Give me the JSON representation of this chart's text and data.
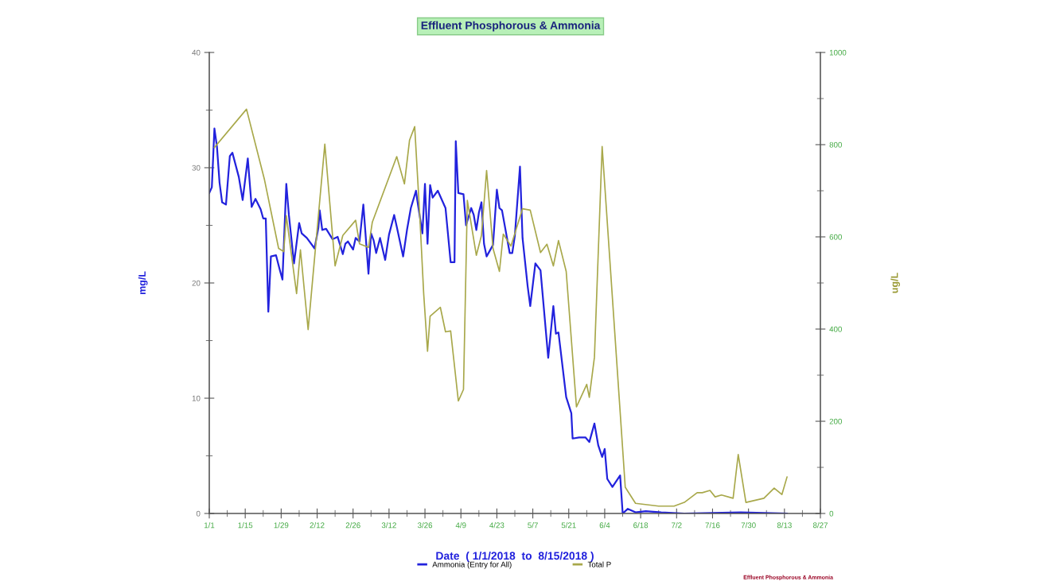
{
  "chart_data": {
    "type": "line",
    "title": "Effluent Phosphorous & Ammonia",
    "xlabel": "Date  ( 1/1/2018  to  8/15/2018 )",
    "ylabel": "mg/L",
    "y2label": "ug/L",
    "xlim": [
      "2018-01-01",
      "2018-08-27"
    ],
    "xticks": [
      {
        "value": "2018-01-01",
        "label": "1/1"
      },
      {
        "value": "2018-01-08",
        "label": null
      },
      {
        "value": "2018-01-15",
        "label": "1/15"
      },
      {
        "value": "2018-01-22",
        "label": null
      },
      {
        "value": "2018-01-29",
        "label": "1/29"
      },
      {
        "value": "2018-02-05",
        "label": null
      },
      {
        "value": "2018-02-12",
        "label": "2/12"
      },
      {
        "value": "2018-02-19",
        "label": null
      },
      {
        "value": "2018-02-26",
        "label": "2/26"
      },
      {
        "value": "2018-03-05",
        "label": null
      },
      {
        "value": "2018-03-12",
        "label": "3/12"
      },
      {
        "value": "2018-03-19",
        "label": null
      },
      {
        "value": "2018-03-26",
        "label": "3/26"
      },
      {
        "value": "2018-04-02",
        "label": null
      },
      {
        "value": "2018-04-09",
        "label": "4/9"
      },
      {
        "value": "2018-04-16",
        "label": null
      },
      {
        "value": "2018-04-23",
        "label": "4/23"
      },
      {
        "value": "2018-04-30",
        "label": null
      },
      {
        "value": "2018-05-07",
        "label": "5/7"
      },
      {
        "value": "2018-05-14",
        "label": null
      },
      {
        "value": "2018-05-21",
        "label": "5/21"
      },
      {
        "value": "2018-05-28",
        "label": null
      },
      {
        "value": "2018-06-04",
        "label": "6/4"
      },
      {
        "value": "2018-06-11",
        "label": null
      },
      {
        "value": "2018-06-18",
        "label": "6/18"
      },
      {
        "value": "2018-06-25",
        "label": null
      },
      {
        "value": "2018-07-02",
        "label": "7/2"
      },
      {
        "value": "2018-07-09",
        "label": null
      },
      {
        "value": "2018-07-16",
        "label": "7/16"
      },
      {
        "value": "2018-07-23",
        "label": null
      },
      {
        "value": "2018-07-30",
        "label": "7/30"
      },
      {
        "value": "2018-08-06",
        "label": null
      },
      {
        "value": "2018-08-13",
        "label": "8/13"
      },
      {
        "value": "2018-08-20",
        "label": null
      },
      {
        "value": "2018-08-27",
        "label": "8/27"
      }
    ],
    "ylim": [
      0,
      40
    ],
    "yticks": [
      0,
      {
        "value": 5,
        "label": null
      },
      10,
      {
        "value": 15,
        "label": null
      },
      20,
      {
        "value": 25,
        "label": null
      },
      30,
      {
        "value": 35,
        "label": null
      },
      40
    ],
    "y2lim": [
      0,
      1000
    ],
    "y2ticks": [
      0,
      {
        "value": 100,
        "label": null
      },
      200,
      {
        "value": 300,
        "label": null
      },
      400,
      {
        "value": 500,
        "label": null
      },
      600,
      {
        "value": 700,
        "label": null
      },
      800,
      {
        "value": 900,
        "label": null
      },
      1000
    ],
    "grid": false,
    "legend": "bottom",
    "marker": "none",
    "line_style": "solid",
    "series": [
      {
        "name": "Ammonia (Entry for All)",
        "color": "#2222dd",
        "x": [
          "2018-01-01",
          "2018-01-02",
          "2018-01-03",
          "2018-01-04",
          "2018-01-05",
          "2018-01-06",
          "2018-01-07T12:00",
          "2018-01-09",
          "2018-01-10",
          "2018-01-12T12:00",
          "2018-01-14",
          "2018-01-16",
          "2018-01-17T12:00",
          "2018-01-19",
          "2018-01-21",
          "2018-01-22",
          "2018-01-23",
          "2018-01-24",
          "2018-01-25",
          "2018-01-27",
          "2018-01-28T12:00",
          "2018-01-29T12:00",
          "2018-01-31",
          "2018-02-01",
          "2018-02-03",
          "2018-02-05",
          "2018-02-06",
          "2018-02-08",
          "2018-02-11",
          "2018-02-12T12:00",
          "2018-02-13",
          "2018-02-14",
          "2018-02-15T12:00",
          "2018-02-18",
          "2018-02-20",
          "2018-02-22",
          "2018-02-23",
          "2018-02-24",
          "2018-02-26",
          "2018-02-27",
          "2018-02-28T12:00",
          "2018-03-02",
          "2018-03-04",
          "2018-03-05",
          "2018-03-06",
          "2018-03-07",
          "2018-03-08T12:00",
          "2018-03-10T12:00",
          "2018-03-12",
          "2018-03-14",
          "2018-03-15",
          "2018-03-17T12:00",
          "2018-03-19",
          "2018-03-20T12:00",
          "2018-03-22T12:00",
          "2018-03-23",
          "2018-03-25",
          "2018-03-26",
          "2018-03-27",
          "2018-03-28",
          "2018-03-29",
          "2018-03-31",
          "2018-04-02",
          "2018-04-03",
          "2018-04-05",
          "2018-04-06T12:00",
          "2018-04-07",
          "2018-04-08",
          "2018-04-10",
          "2018-04-11",
          "2018-04-13",
          "2018-04-14",
          "2018-04-15",
          "2018-04-16",
          "2018-04-17",
          "2018-04-18",
          "2018-04-19",
          "2018-04-20",
          "2018-04-21T12:00",
          "2018-04-23",
          "2018-04-24",
          "2018-04-25",
          "2018-04-28",
          "2018-04-29",
          "2018-04-30",
          "2018-05-02",
          "2018-05-03",
          "2018-05-04",
          "2018-05-05",
          "2018-05-06",
          "2018-05-08",
          "2018-05-10",
          "2018-05-13",
          "2018-05-15",
          "2018-05-16",
          "2018-05-17",
          "2018-05-20",
          "2018-05-22",
          "2018-05-22T12:00",
          "2018-05-25",
          "2018-05-27T12:00",
          "2018-05-29",
          "2018-05-31",
          "2018-06-01T12:00",
          "2018-06-03",
          "2018-06-04",
          "2018-06-05",
          "2018-06-07",
          "2018-06-10",
          "2018-06-11",
          "2018-06-13",
          "2018-06-16",
          "2018-06-20",
          "2018-06-26",
          "2018-07-05",
          "2018-07-27",
          "2018-08-14"
        ],
        "values": [
          27.8,
          28.3,
          33.4,
          31.8,
          28.7,
          27,
          26.8,
          31,
          31.3,
          29.2,
          27.2,
          30.8,
          26.6,
          27.3,
          26.4,
          25.6,
          25.6,
          17.5,
          22.3,
          22.4,
          21.1,
          20.3,
          28.6,
          25.9,
          21.7,
          25.2,
          24.3,
          23.9,
          23,
          24.8,
          26.3,
          24.6,
          24.7,
          23.8,
          24,
          22.5,
          23.4,
          23.6,
          22.9,
          23.9,
          23.6,
          26.8,
          20.8,
          24.3,
          23.7,
          22.6,
          23.9,
          22,
          24.2,
          25.9,
          24.9,
          22.3,
          24.6,
          26.5,
          28,
          27.2,
          24.3,
          28.6,
          23.4,
          28.5,
          27.4,
          28,
          27,
          26.5,
          21.8,
          21.8,
          32.3,
          27.8,
          27.7,
          25,
          26.5,
          25.9,
          24.6,
          26.1,
          27,
          23.4,
          22.3,
          22.7,
          23.3,
          28.1,
          26.5,
          26.3,
          22.6,
          22.6,
          24.1,
          30.1,
          23.9,
          21.8,
          19.7,
          18,
          21.7,
          21.1,
          13.5,
          18,
          15.6,
          15.7,
          10.1,
          8.7,
          6.5,
          6.6,
          6.6,
          6.2,
          7.8,
          5.9,
          4.9,
          5.6,
          3,
          2.3,
          3.3,
          0,
          0.4,
          0.1,
          0.2,
          0.1,
          0,
          0.1,
          0
        ]
      },
      {
        "name": "Total P",
        "color": "#a8a84a",
        "axis": "y2",
        "x": [
          "2018-01-03",
          "2018-01-15T12:00",
          "2018-01-22T12:00",
          "2018-01-28",
          "2018-01-30",
          "2018-01-31",
          "2018-02-04",
          "2018-02-05T12:00",
          "2018-02-08T12:00",
          "2018-02-15",
          "2018-02-19",
          "2018-02-22",
          "2018-02-27",
          "2018-02-28T12:00",
          "2018-03-04",
          "2018-03-05T12:00",
          "2018-03-15",
          "2018-03-18",
          "2018-03-20",
          "2018-03-22",
          "2018-03-24",
          "2018-03-25T12:00",
          "2018-03-27",
          "2018-03-28",
          "2018-04-01",
          "2018-04-03",
          "2018-04-05",
          "2018-04-08",
          "2018-04-10",
          "2018-04-11T12:00",
          "2018-04-15",
          "2018-04-17",
          "2018-04-19",
          "2018-04-21T12:00",
          "2018-04-24",
          "2018-04-25T12:00",
          "2018-04-28T12:00",
          "2018-05-03",
          "2018-05-06",
          "2018-05-10",
          "2018-05-12T12:00",
          "2018-05-15",
          "2018-05-17",
          "2018-05-20",
          "2018-05-24",
          "2018-05-28",
          "2018-05-29",
          "2018-05-31",
          "2018-06-03",
          "2018-06-12",
          "2018-06-16",
          "2018-06-25",
          "2018-07-01",
          "2018-07-05",
          "2018-07-10",
          "2018-07-12",
          "2018-07-15",
          "2018-07-17",
          "2018-07-19T12:00",
          "2018-07-24",
          "2018-07-26",
          "2018-07-29",
          "2018-08-05",
          "2018-08-09",
          "2018-08-12",
          "2018-08-14"
        ],
        "values": [
          794,
          877,
          724,
          575,
          568,
          646,
          477,
          572,
          399,
          801,
          537,
          603,
          636,
          585,
          577,
          632,
          774,
          715,
          810,
          839,
          644,
          477,
          352,
          428,
          447,
          394,
          396,
          244,
          269,
          679,
          560,
          603,
          744,
          575,
          525,
          606,
          580,
          661,
          658,
          566,
          584,
          537,
          592,
          525,
          231,
          280,
          252,
          339,
          796,
          57,
          22,
          16,
          16,
          24,
          45,
          45,
          50,
          36,
          40,
          33,
          128,
          24,
          33,
          55,
          41,
          79
        ]
      }
    ],
    "annotations": [
      "Effluent Phosphorous & Ammonia"
    ]
  }
}
